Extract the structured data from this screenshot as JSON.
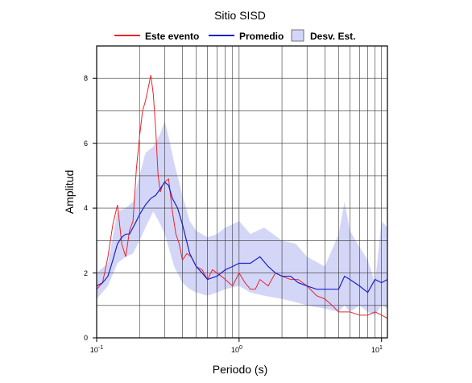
{
  "chart_data": {
    "type": "line",
    "title": "Sitio SISD",
    "xlabel": "Periodo (s)",
    "ylabel": "Amplitud",
    "x_scale": "log",
    "xlim": [
      0.1,
      11
    ],
    "ylim": [
      0,
      9
    ],
    "x_ticks": [
      {
        "value": 0.1,
        "base": "10",
        "exp": "-1"
      },
      {
        "value": 1,
        "label": "10",
        "sup": "0",
        "base": "10",
        "exp": "0"
      },
      {
        "value": 10,
        "base": "10",
        "exp": "1"
      }
    ],
    "y_ticks": [
      0,
      2,
      4,
      6,
      8
    ],
    "y_tick_labels": [
      "0",
      "2",
      "4",
      "6",
      "8"
    ],
    "grid": true,
    "legend_position": "top",
    "legend": [
      {
        "label": "Este evento",
        "kind": "line",
        "color": "#e8262a"
      },
      {
        "label": "Promedio",
        "kind": "line",
        "color": "#1a22cc"
      },
      {
        "label": "Desv. Est.",
        "kind": "band",
        "color": "#d4d6f8"
      }
    ],
    "band": {
      "name": "Desv. Est.",
      "color": "#d4d6f8",
      "x": [
        0.1,
        0.12,
        0.14,
        0.16,
        0.18,
        0.2,
        0.22,
        0.25,
        0.28,
        0.3,
        0.32,
        0.35,
        0.4,
        0.45,
        0.5,
        0.6,
        0.7,
        0.8,
        1.0,
        1.2,
        1.5,
        2.0,
        2.5,
        3.0,
        4.0,
        5.0,
        5.5,
        6.0,
        7.0,
        8.0,
        9.0,
        10.0,
        11.0
      ],
      "upper": [
        2.0,
        2.3,
        3.9,
        4.0,
        4.2,
        5.0,
        5.7,
        5.9,
        6.3,
        6.7,
        6.2,
        5.4,
        4.4,
        3.6,
        3.3,
        3.1,
        3.2,
        3.4,
        3.6,
        3.2,
        3.4,
        3.0,
        2.9,
        2.5,
        2.2,
        3.2,
        4.2,
        3.3,
        2.8,
        2.4,
        1.7,
        3.6,
        3.4
      ],
      "lower": [
        1.2,
        1.6,
        2.3,
        2.5,
        2.6,
        3.0,
        3.4,
        3.9,
        3.5,
        3.2,
        2.8,
        2.2,
        1.7,
        1.5,
        1.4,
        1.3,
        1.4,
        1.5,
        1.6,
        1.4,
        1.3,
        1.2,
        1.1,
        1.0,
        0.9,
        0.8,
        1.0,
        0.8,
        1.0,
        0.8,
        0.7,
        1.0,
        0.9
      ]
    },
    "series": [
      {
        "name": "Este evento",
        "color": "#e8262a",
        "x": [
          0.1,
          0.11,
          0.12,
          0.13,
          0.14,
          0.15,
          0.16,
          0.17,
          0.18,
          0.19,
          0.2,
          0.21,
          0.22,
          0.23,
          0.24,
          0.25,
          0.26,
          0.27,
          0.28,
          0.29,
          0.3,
          0.32,
          0.34,
          0.36,
          0.38,
          0.4,
          0.43,
          0.46,
          0.5,
          0.55,
          0.6,
          0.65,
          0.7,
          0.75,
          0.8,
          0.9,
          1.0,
          1.1,
          1.2,
          1.3,
          1.4,
          1.6,
          1.8,
          2.0,
          2.3,
          2.6,
          3.0,
          3.5,
          4.0,
          4.5,
          5.0,
          6.0,
          7.0,
          8.0,
          9.0,
          10.0,
          11.0
        ],
        "values": [
          1.5,
          1.7,
          2.5,
          3.5,
          4.1,
          2.9,
          2.5,
          3.3,
          3.6,
          5.2,
          6.2,
          7.0,
          7.3,
          7.7,
          8.1,
          7.5,
          6.4,
          5.0,
          4.5,
          4.7,
          4.8,
          4.9,
          3.9,
          3.2,
          2.9,
          2.4,
          2.6,
          2.5,
          2.2,
          2.1,
          1.8,
          2.1,
          2.0,
          1.9,
          1.8,
          1.6,
          2.0,
          1.7,
          1.5,
          1.5,
          1.8,
          1.6,
          2.0,
          1.9,
          1.8,
          1.8,
          1.6,
          1.3,
          1.2,
          1.0,
          0.8,
          0.8,
          0.7,
          0.7,
          0.8,
          0.7,
          0.6
        ]
      },
      {
        "name": "Promedio",
        "color": "#1a22cc",
        "x": [
          0.1,
          0.11,
          0.12,
          0.13,
          0.14,
          0.15,
          0.16,
          0.17,
          0.18,
          0.19,
          0.2,
          0.22,
          0.24,
          0.26,
          0.28,
          0.3,
          0.32,
          0.34,
          0.37,
          0.4,
          0.45,
          0.5,
          0.55,
          0.6,
          0.7,
          0.8,
          0.9,
          1.0,
          1.2,
          1.4,
          1.6,
          1.8,
          2.0,
          2.3,
          2.6,
          3.0,
          3.5,
          4.0,
          4.5,
          5.0,
          5.5,
          6.0,
          7.0,
          8.0,
          9.0,
          10.0,
          11.0
        ],
        "values": [
          1.6,
          1.7,
          1.9,
          2.4,
          2.9,
          3.1,
          3.2,
          3.2,
          3.4,
          3.6,
          3.8,
          4.1,
          4.3,
          4.4,
          4.6,
          4.8,
          4.7,
          4.3,
          4.0,
          3.5,
          2.6,
          2.2,
          2.0,
          1.8,
          1.9,
          2.1,
          2.2,
          2.3,
          2.3,
          2.5,
          2.2,
          2.0,
          1.9,
          1.9,
          1.7,
          1.6,
          1.5,
          1.5,
          1.5,
          1.5,
          1.9,
          1.8,
          1.6,
          1.4,
          1.8,
          1.7,
          1.8
        ]
      }
    ]
  }
}
